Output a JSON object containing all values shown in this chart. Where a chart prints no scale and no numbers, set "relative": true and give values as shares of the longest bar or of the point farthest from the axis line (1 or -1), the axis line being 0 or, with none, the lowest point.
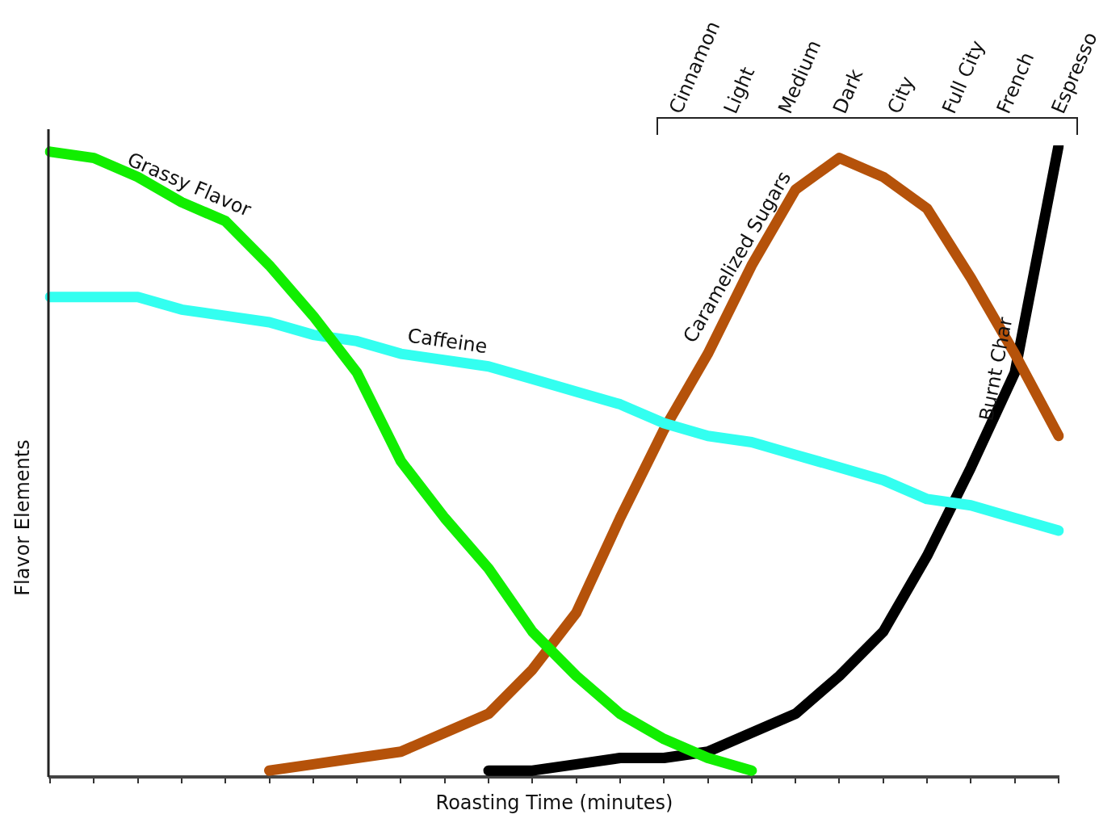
{
  "chart_data": {
    "type": "line",
    "relative": true,
    "xlabel": "Roasting Time (minutes)",
    "ylabel": "Flavor Elements",
    "grid": false,
    "legend": false,
    "categories": [
      null,
      null,
      null,
      null,
      null,
      null,
      null,
      null,
      null,
      null,
      null,
      null,
      null,
      null,
      null,
      null,
      null,
      null,
      null,
      null,
      null,
      null,
      null,
      null
    ],
    "series": [
      {
        "name": "Grassy Flavor",
        "color": "#11ee00",
        "values": [
          0.99,
          0.98,
          0.95,
          0.91,
          0.88,
          0.81,
          0.73,
          0.64,
          0.5,
          0.41,
          0.33,
          0.23,
          0.16,
          0.1,
          0.06,
          0.03,
          0.01,
          null,
          null,
          null,
          null,
          null,
          null,
          null
        ]
      },
      {
        "name": "Caffeine",
        "color": "#33fff0",
        "values": [
          0.76,
          0.76,
          0.76,
          0.74,
          0.73,
          0.72,
          0.7,
          0.69,
          0.67,
          0.66,
          0.65,
          0.63,
          0.61,
          0.59,
          0.56,
          0.54,
          0.53,
          0.51,
          0.49,
          0.47,
          0.44,
          0.43,
          0.41,
          0.39
        ]
      },
      {
        "name": "Caramelized Sugars",
        "color": "#b5520a",
        "values": [
          null,
          null,
          null,
          null,
          null,
          0.01,
          0.02,
          0.03,
          0.04,
          0.07,
          0.1,
          0.17,
          0.26,
          0.41,
          0.55,
          0.67,
          0.81,
          0.93,
          0.98,
          0.95,
          0.9,
          0.79,
          0.67,
          0.54
        ]
      },
      {
        "name": "Burnt Char",
        "color": "#000000",
        "values": [
          null,
          null,
          null,
          null,
          null,
          null,
          null,
          null,
          null,
          null,
          0.01,
          0.01,
          0.02,
          0.03,
          0.03,
          0.04,
          0.07,
          0.1,
          0.16,
          0.23,
          0.35,
          0.49,
          0.64,
          1
        ]
      }
    ],
    "annotations": [
      "Cinnamon",
      "Light",
      "Medium",
      "Dark",
      "City",
      "Full City",
      "French",
      "Espresso"
    ]
  }
}
